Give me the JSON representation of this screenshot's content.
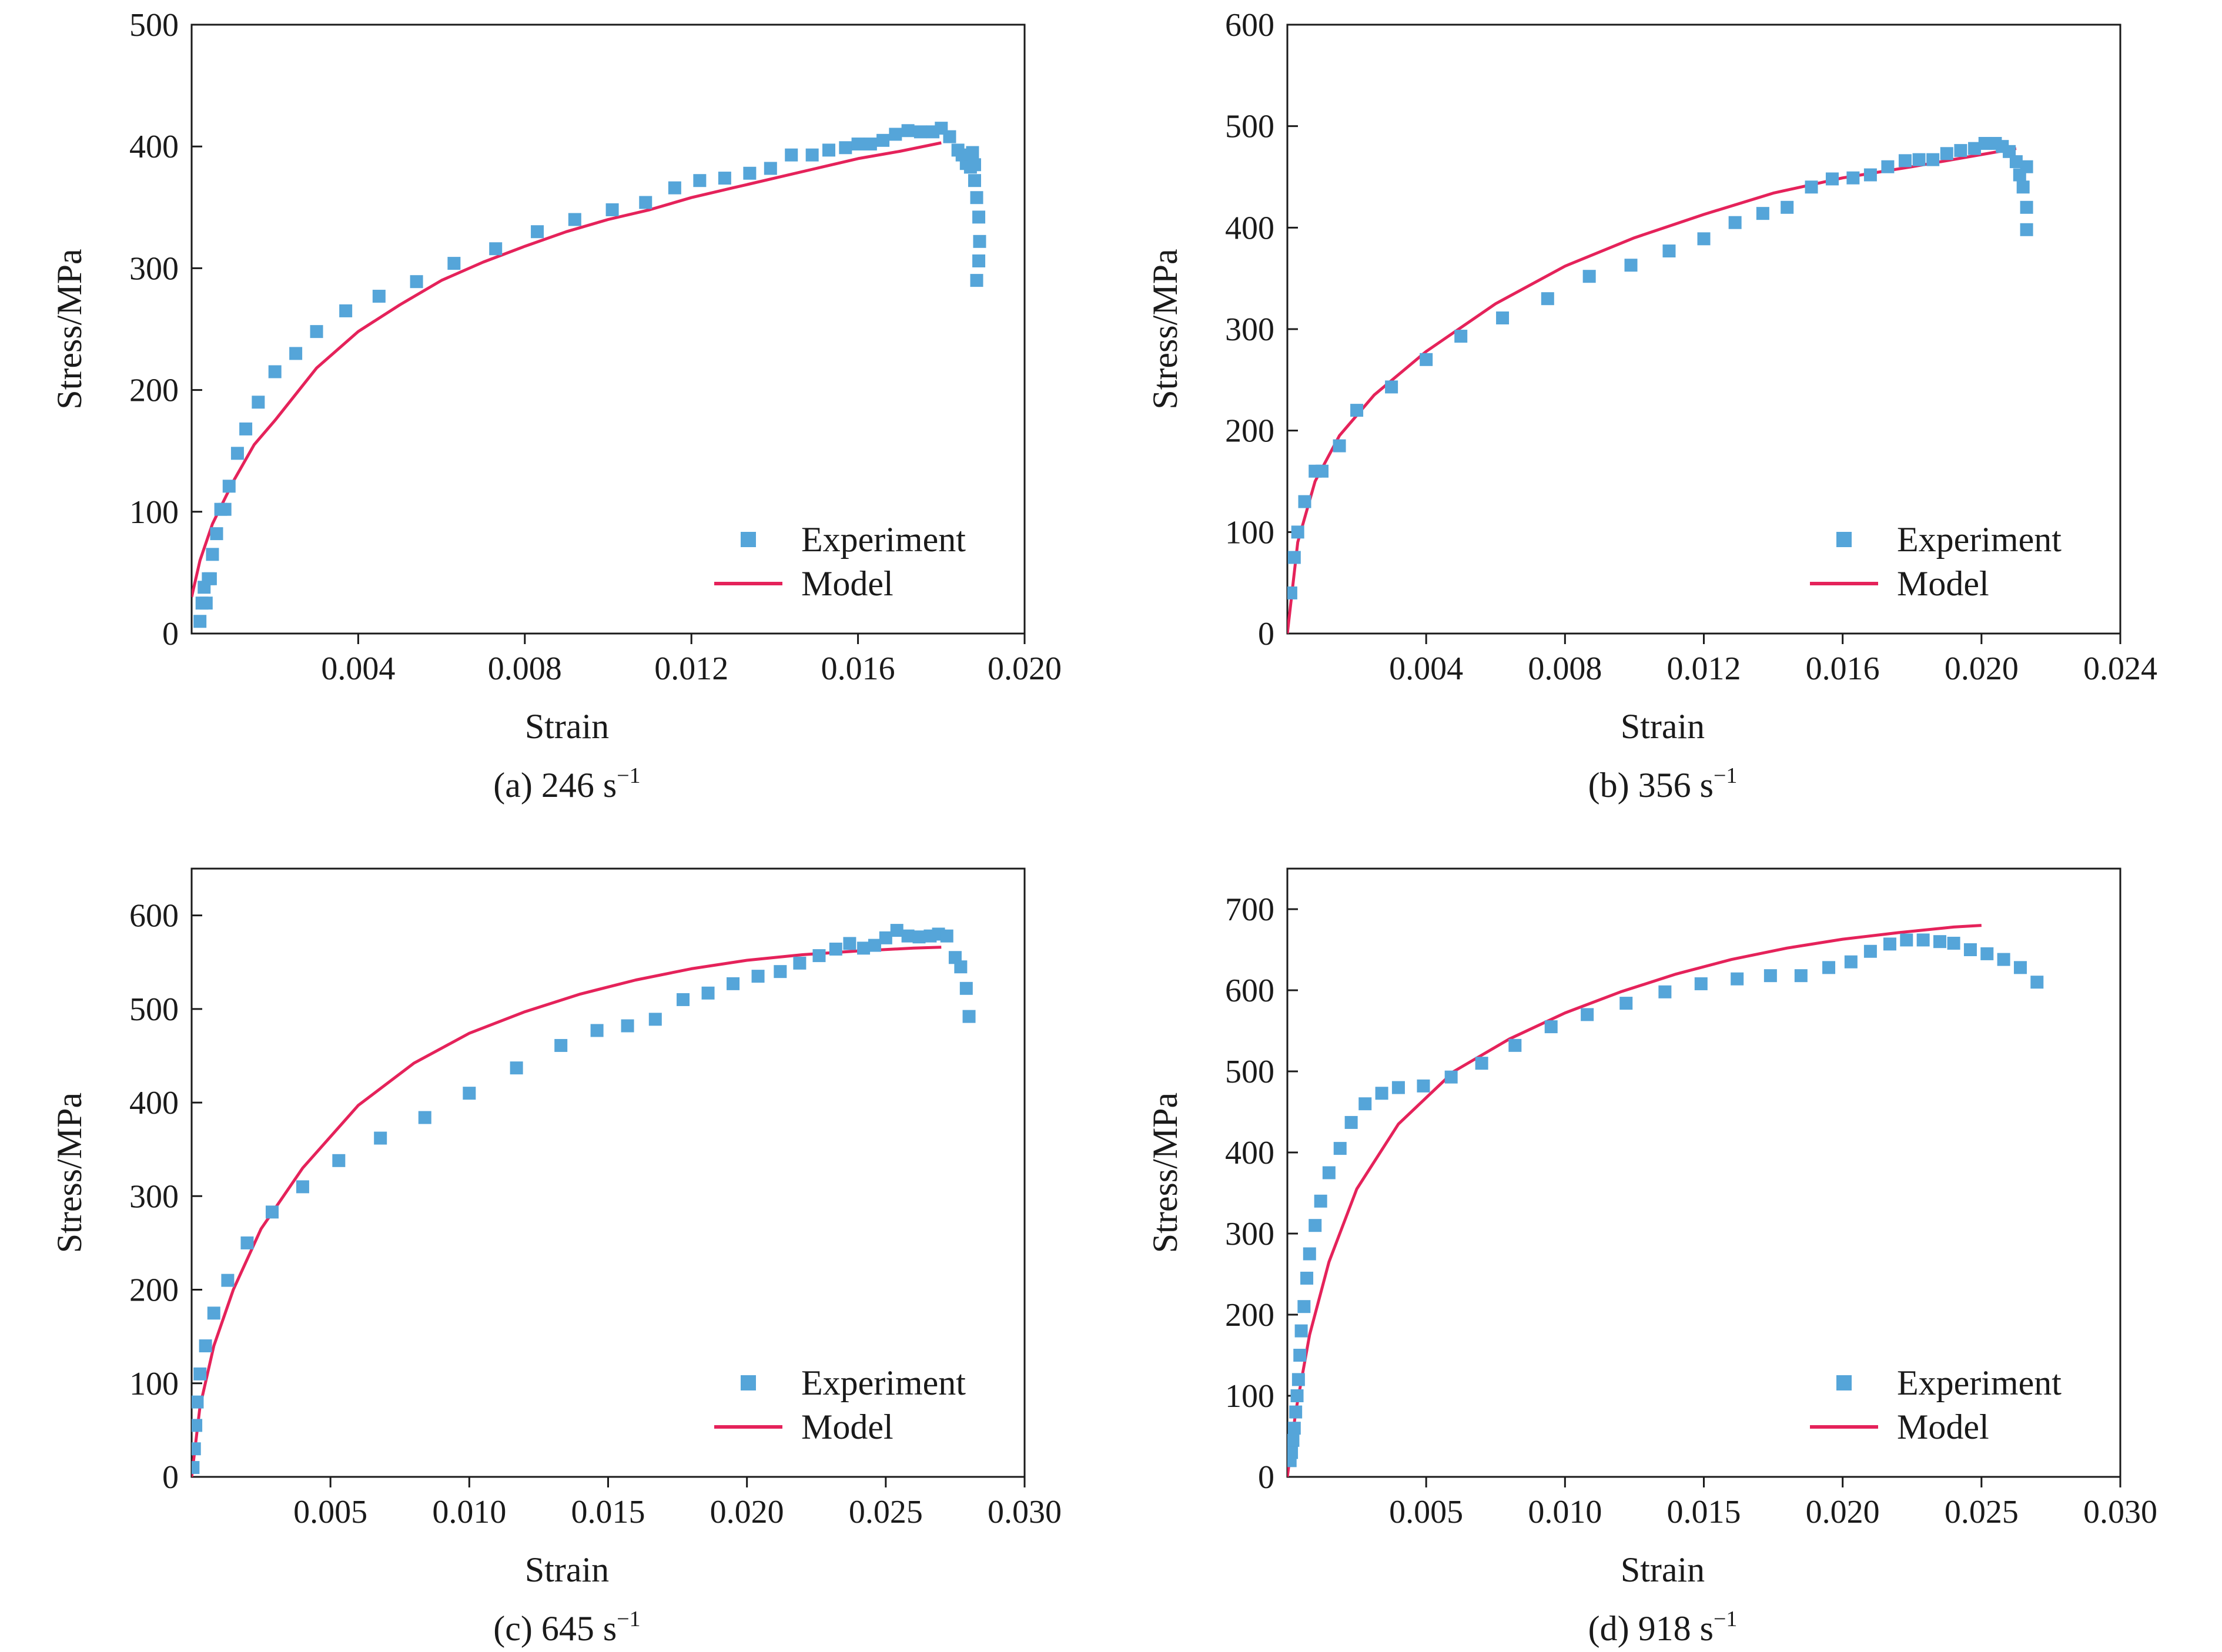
{
  "legend": {
    "experiment_label": "Experiment",
    "model_label": "Model"
  },
  "colors": {
    "experiment": "#55A5D9",
    "model": "#E5225A",
    "axis": "#1a1a1a"
  },
  "chart_data": [
    {
      "type": "scatter",
      "caption": "(a) 246 s",
      "caption_sup": "−1",
      "xlabel": "Strain",
      "ylabel": "Stress/MPa",
      "xlim": [
        0,
        0.02
      ],
      "ylim": [
        0,
        500
      ],
      "xticks": [
        0.004,
        0.008,
        0.012,
        0.016,
        0.02
      ],
      "xtick_labels": [
        "0.004",
        "0.008",
        "0.012",
        "0.016",
        "0.020"
      ],
      "yticks": [
        0,
        100,
        200,
        300,
        400,
        500
      ],
      "ytick_labels": [
        "0",
        "100",
        "200",
        "300",
        "400",
        "500"
      ],
      "legend_position": "bottom-right",
      "series": [
        {
          "name": "Experiment",
          "kind": "scatter",
          "x": [
            0.0002,
            0.00025,
            0.0003,
            0.00035,
            0.0004,
            0.00045,
            0.0005,
            0.0006,
            0.0007,
            0.0008,
            0.0009,
            0.0011,
            0.0013,
            0.0016,
            0.002,
            0.0025,
            0.003,
            0.0037,
            0.0045,
            0.0054,
            0.0063,
            0.0073,
            0.0083,
            0.0092,
            0.0101,
            0.0109,
            0.0116,
            0.0122,
            0.0128,
            0.0134,
            0.0139,
            0.0144,
            0.0149,
            0.0153,
            0.0157,
            0.016,
            0.0163,
            0.0166,
            0.0169,
            0.0172,
            0.0175,
            0.0178,
            0.018,
            0.0182,
            0.0184,
            0.0185,
            0.0186,
            0.0187,
            0.0188,
            0.01885,
            0.0189,
            0.01892,
            0.0189,
            0.01885,
            0.0188,
            0.01875
          ],
          "y": [
            10,
            25,
            38,
            25,
            45,
            45,
            65,
            82,
            102,
            102,
            121,
            148,
            168,
            190,
            215,
            230,
            248,
            265,
            277,
            289,
            304,
            316,
            330,
            340,
            348,
            354,
            366,
            372,
            374,
            378,
            382,
            393,
            393,
            397,
            399,
            402,
            402,
            405,
            410,
            413,
            412,
            412,
            415,
            408,
            397,
            393,
            386,
            383,
            372,
            358,
            342,
            322,
            306,
            290,
            385,
            395
          ]
        },
        {
          "name": "Model",
          "kind": "line",
          "x": [
            0,
            0.0002,
            0.0005,
            0.001,
            0.0015,
            0.002,
            0.003,
            0.004,
            0.005,
            0.006,
            0.007,
            0.008,
            0.009,
            0.01,
            0.011,
            0.012,
            0.013,
            0.014,
            0.015,
            0.016,
            0.017,
            0.018
          ],
          "y": [
            30,
            60,
            90,
            125,
            155,
            175,
            218,
            248,
            270,
            290,
            305,
            318,
            330,
            340,
            348,
            358,
            366,
            374,
            382,
            390,
            396,
            403
          ]
        }
      ]
    },
    {
      "type": "scatter",
      "caption": "(b) 356 s",
      "caption_sup": "−1",
      "xlabel": "Strain",
      "ylabel": "Stress/MPa",
      "xlim": [
        0,
        0.024
      ],
      "ylim": [
        0,
        600
      ],
      "xticks": [
        0.004,
        0.008,
        0.012,
        0.016,
        0.02,
        0.024
      ],
      "xtick_labels": [
        "0.004",
        "0.008",
        "0.012",
        "0.016",
        "0.020",
        "0.024"
      ],
      "yticks": [
        0,
        100,
        200,
        300,
        400,
        500,
        600
      ],
      "ytick_labels": [
        "0",
        "100",
        "200",
        "300",
        "400",
        "500",
        "600"
      ],
      "legend_position": "bottom-right",
      "series": [
        {
          "name": "Experiment",
          "kind": "scatter",
          "x": [
            0.0001,
            0.0002,
            0.0003,
            0.0005,
            0.0008,
            0.001,
            0.0015,
            0.002,
            0.003,
            0.004,
            0.005,
            0.0062,
            0.0075,
            0.0087,
            0.0099,
            0.011,
            0.012,
            0.0129,
            0.0137,
            0.0144,
            0.0151,
            0.0157,
            0.0163,
            0.0168,
            0.0173,
            0.0178,
            0.0182,
            0.0186,
            0.019,
            0.0194,
            0.0198,
            0.0201,
            0.0204,
            0.0206,
            0.0208,
            0.021,
            0.0211,
            0.0212,
            0.0213,
            0.0213,
            0.0213
          ],
          "y": [
            40,
            75,
            100,
            130,
            160,
            160,
            185,
            220,
            243,
            270,
            293,
            311,
            330,
            352,
            363,
            377,
            389,
            405,
            414,
            420,
            440,
            448,
            449,
            452,
            460,
            466,
            467,
            467,
            473,
            476,
            478,
            483,
            483,
            480,
            475,
            465,
            452,
            440,
            420,
            398,
            460
          ]
        },
        {
          "name": "Model",
          "kind": "line",
          "x": [
            0,
            0.0003,
            0.0008,
            0.0015,
            0.0025,
            0.004,
            0.006,
            0.008,
            0.01,
            0.012,
            0.014,
            0.016,
            0.018,
            0.02,
            0.021
          ],
          "y": [
            0,
            90,
            150,
            195,
            235,
            278,
            325,
            362,
            390,
            413,
            434,
            449,
            460,
            472,
            478
          ]
        }
      ]
    },
    {
      "type": "scatter",
      "caption": "(c) 645 s",
      "caption_sup": "−1",
      "xlabel": "Strain",
      "ylabel": "Stress/MPa",
      "xlim": [
        0,
        0.03
      ],
      "ylim": [
        0,
        650
      ],
      "xticks": [
        0.005,
        0.01,
        0.015,
        0.02,
        0.025,
        0.03
      ],
      "xtick_labels": [
        "0.005",
        "0.010",
        "0.015",
        "0.020",
        "0.025",
        "0.030"
      ],
      "yticks": [
        0,
        100,
        200,
        300,
        400,
        500,
        600
      ],
      "ytick_labels": [
        "0",
        "100",
        "200",
        "300",
        "400",
        "500",
        "600"
      ],
      "legend_position": "bottom-right",
      "series": [
        {
          "name": "Experiment",
          "kind": "scatter",
          "x": [
            5e-05,
            0.0001,
            0.00015,
            0.0002,
            0.0003,
            0.0005,
            0.0008,
            0.0013,
            0.002,
            0.0029,
            0.004,
            0.0053,
            0.0068,
            0.0084,
            0.01,
            0.0117,
            0.0133,
            0.0146,
            0.0157,
            0.0167,
            0.0177,
            0.0186,
            0.0195,
            0.0204,
            0.0212,
            0.0219,
            0.0226,
            0.0232,
            0.0237,
            0.0242,
            0.0246,
            0.025,
            0.0254,
            0.0258,
            0.0262,
            0.0266,
            0.0269,
            0.0272,
            0.0275,
            0.0277,
            0.0279,
            0.028
          ],
          "y": [
            10,
            30,
            55,
            80,
            110,
            140,
            175,
            210,
            250,
            283,
            310,
            338,
            362,
            384,
            410,
            437,
            461,
            477,
            482,
            489,
            510,
            517,
            527,
            535,
            540,
            549,
            557,
            564,
            570,
            565,
            568,
            576,
            584,
            578,
            577,
            578,
            580,
            578,
            555,
            545,
            522,
            492
          ]
        },
        {
          "name": "Model",
          "kind": "line",
          "x": [
            0,
            0.0003,
            0.0008,
            0.0015,
            0.0025,
            0.004,
            0.006,
            0.008,
            0.01,
            0.012,
            0.014,
            0.016,
            0.018,
            0.02,
            0.022,
            0.024,
            0.026,
            0.027
          ],
          "y": [
            0,
            75,
            140,
            200,
            265,
            330,
            397,
            442,
            474,
            497,
            516,
            531,
            543,
            552,
            558,
            562,
            565,
            566
          ]
        }
      ]
    },
    {
      "type": "scatter",
      "caption": "(d) 918 s",
      "caption_sup": "−1",
      "xlabel": "Strain",
      "ylabel": "Stress/MPa",
      "xlim": [
        0,
        0.03
      ],
      "ylim": [
        0,
        750
      ],
      "xticks": [
        0.005,
        0.01,
        0.015,
        0.02,
        0.025,
        0.03
      ],
      "xtick_labels": [
        "0.005",
        "0.010",
        "0.015",
        "0.020",
        "0.025",
        "0.030"
      ],
      "yticks": [
        0,
        100,
        200,
        300,
        400,
        500,
        600,
        700
      ],
      "ytick_labels": [
        "0",
        "100",
        "200",
        "300",
        "400",
        "500",
        "600",
        "700"
      ],
      "legend_position": "bottom-right",
      "series": [
        {
          "name": "Experiment",
          "kind": "scatter",
          "x": [
            0.0001,
            0.00015,
            0.0002,
            0.00025,
            0.0003,
            0.00035,
            0.0004,
            0.00045,
            0.0005,
            0.0006,
            0.0007,
            0.0008,
            0.001,
            0.0012,
            0.0015,
            0.0019,
            0.0023,
            0.0028,
            0.0034,
            0.004,
            0.0049,
            0.0059,
            0.007,
            0.0082,
            0.0095,
            0.0108,
            0.0122,
            0.0136,
            0.0149,
            0.0162,
            0.0174,
            0.0185,
            0.0195,
            0.0203,
            0.021,
            0.0217,
            0.0223,
            0.0229,
            0.0235,
            0.024,
            0.0246,
            0.0252,
            0.0258,
            0.0264,
            0.027
          ],
          "y": [
            20,
            30,
            45,
            60,
            80,
            100,
            120,
            150,
            180,
            210,
            245,
            275,
            310,
            340,
            375,
            405,
            437,
            460,
            473,
            480,
            482,
            493,
            510,
            532,
            555,
            570,
            584,
            598,
            608,
            614,
            618,
            618,
            628,
            635,
            648,
            657,
            662,
            662,
            660,
            658,
            650,
            645,
            638,
            628,
            610
          ]
        },
        {
          "name": "Model",
          "kind": "line",
          "x": [
            0,
            0.0003,
            0.0008,
            0.0015,
            0.0025,
            0.004,
            0.006,
            0.008,
            0.01,
            0.012,
            0.014,
            0.016,
            0.018,
            0.02,
            0.022,
            0.024,
            0.025
          ],
          "y": [
            0,
            80,
            175,
            265,
            355,
            435,
            500,
            540,
            572,
            598,
            620,
            638,
            652,
            663,
            671,
            678,
            680
          ]
        }
      ]
    }
  ]
}
